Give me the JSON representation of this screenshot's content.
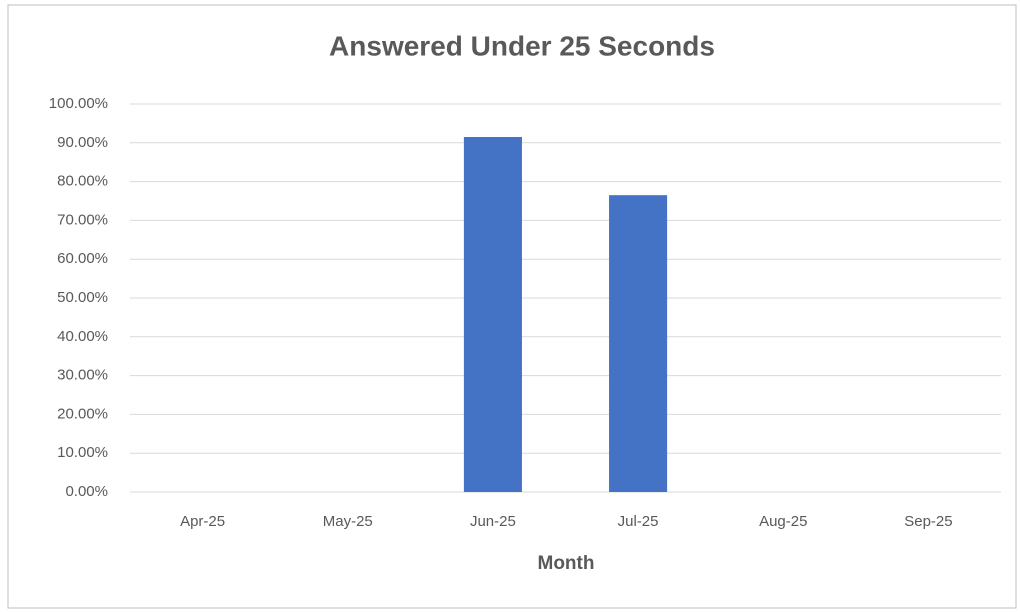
{
  "chart_data": {
    "type": "bar",
    "title": "Answered Under 25 Seconds",
    "x_label": "Month",
    "categories": [
      "Apr-25",
      "May-25",
      "Jun-25",
      "Jul-25",
      "Aug-25",
      "Sep-25"
    ],
    "values": [
      null,
      null,
      91.5,
      76.5,
      null,
      null
    ],
    "color": "#4472c4",
    "ylim": [
      0,
      100
    ],
    "yticks": [
      {
        "value": 0,
        "label": "0.00%"
      },
      {
        "value": 10,
        "label": "10.00%"
      },
      {
        "value": 20,
        "label": "20.00%"
      },
      {
        "value": 30,
        "label": "30.00%"
      },
      {
        "value": 40,
        "label": "40.00%"
      },
      {
        "value": 50,
        "label": "50.00%"
      },
      {
        "value": 60,
        "label": "60.00%"
      },
      {
        "value": 70,
        "label": "70.00%"
      },
      {
        "value": 80,
        "label": "80.00%"
      },
      {
        "value": 90,
        "label": "90.00%"
      },
      {
        "value": 100,
        "label": "100.00%"
      }
    ],
    "grid": true
  }
}
